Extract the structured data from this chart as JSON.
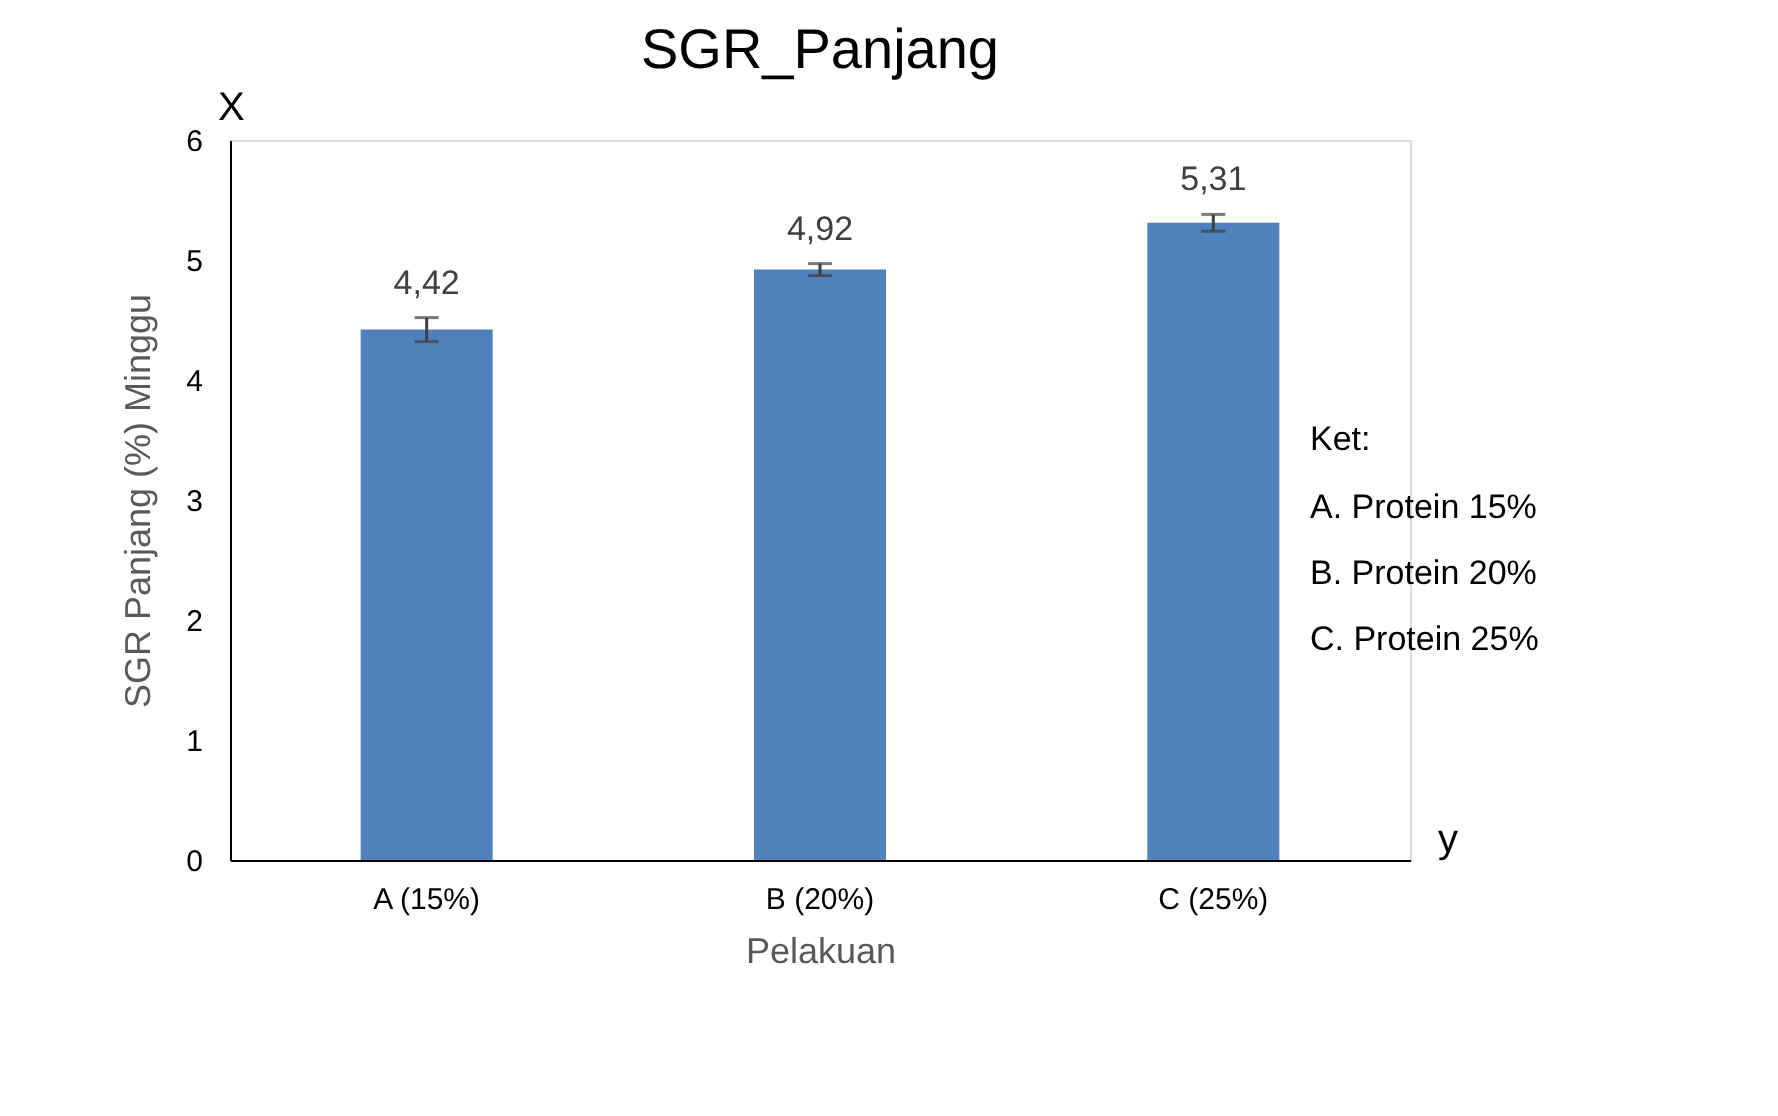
{
  "chart_data": {
    "type": "bar",
    "title": "SGR_Panjang",
    "xlabel": "Pelakuan",
    "ylabel": "SGR Panjang (%) Minggu",
    "categories": [
      "A (15%)",
      "B (20%)",
      "C (25%)"
    ],
    "values": [
      4.42,
      4.92,
      5.31
    ],
    "value_labels": [
      "4,42",
      "4,92",
      "5,31"
    ],
    "errors": [
      0.1,
      0.05,
      0.07
    ],
    "color": "#4f81bd",
    "ylim": [
      0,
      6
    ],
    "yticks": [
      0,
      1,
      2,
      3,
      4,
      5,
      6
    ],
    "grid": false,
    "annotations": [
      "X",
      "y",
      "Ket:",
      "A. Protein 15%",
      "B. Protein 20%",
      "C. Protein 25%"
    ]
  }
}
